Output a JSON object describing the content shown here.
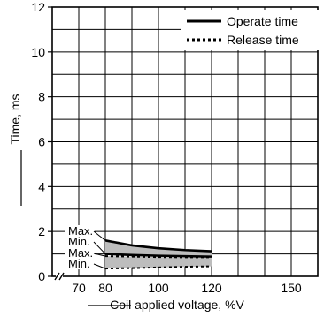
{
  "chart_data": {
    "type": "line",
    "xlabel": "Coil applied voltage, %V",
    "ylabel": "Time, ms",
    "x_axis": {
      "ticks": [
        70,
        80,
        100,
        120,
        150
      ],
      "gridlines": [
        70,
        80,
        90,
        100,
        110,
        120,
        130,
        140,
        150,
        160
      ],
      "range": [
        60,
        160
      ],
      "axis_break": true
    },
    "y_axis": {
      "ticks": [
        0,
        2,
        4,
        6,
        8,
        10,
        12
      ],
      "range": [
        0,
        12
      ]
    },
    "grid": true,
    "legend": {
      "placement": "top-right",
      "entries": [
        {
          "label": "Operate time",
          "style": "solid"
        },
        {
          "label": "Release time",
          "style": "dotted"
        }
      ]
    },
    "band_labels": [
      "Max.",
      "Min.",
      "Max.",
      "Min."
    ],
    "x": [
      80,
      90,
      100,
      110,
      120
    ],
    "series": [
      {
        "name": "Operate time",
        "kind": "max",
        "style": "solid",
        "values": [
          1.6,
          1.38,
          1.25,
          1.17,
          1.12
        ]
      },
      {
        "name": "Operate time",
        "kind": "min",
        "style": "solid",
        "values": [
          1.0,
          0.95,
          0.92,
          0.9,
          0.88
        ]
      },
      {
        "name": "Release time",
        "kind": "max",
        "style": "dotted",
        "values": [
          0.9,
          0.88,
          0.86,
          0.85,
          0.85
        ]
      },
      {
        "name": "Release time",
        "kind": "min",
        "style": "dotted",
        "values": [
          0.35,
          0.37,
          0.4,
          0.43,
          0.45
        ]
      }
    ],
    "colors": {
      "band_fill": "#bdbdbd",
      "line": "#000000",
      "grid": "#000000"
    }
  }
}
